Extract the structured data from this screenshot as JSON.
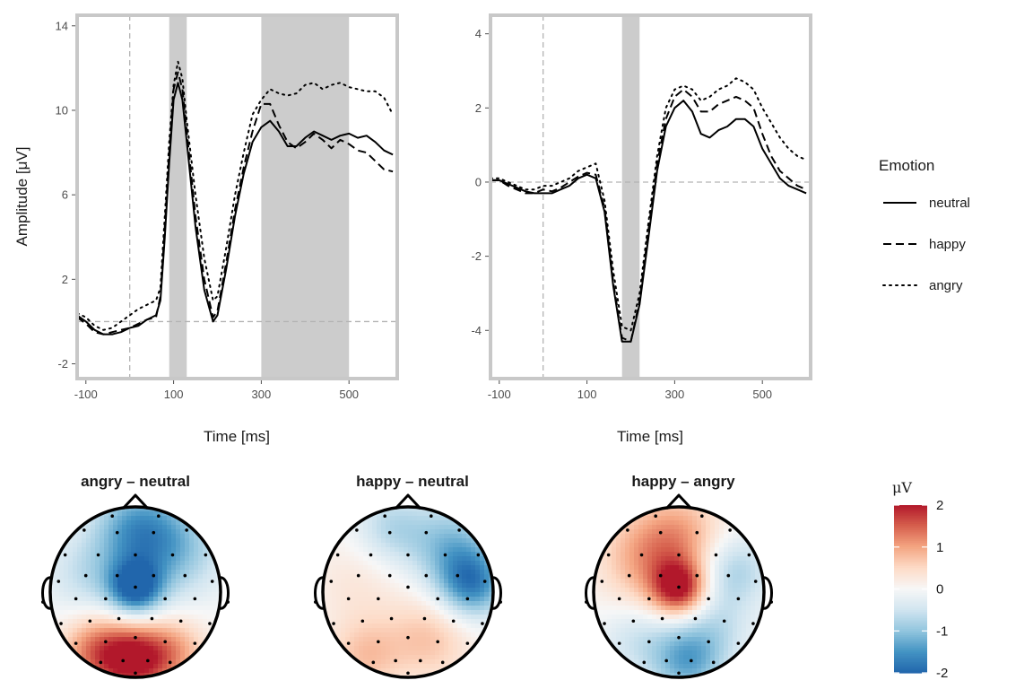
{
  "chart_data": [
    {
      "type": "line",
      "xlabel": "Time [ms]",
      "ylabel": "Amplitude [μV]",
      "xlim": [
        -120,
        610
      ],
      "ylim": [
        -2.7,
        14.5
      ],
      "xticks": [
        -100,
        100,
        300,
        500
      ],
      "yticks": [
        -2,
        2,
        6,
        10,
        14
      ],
      "grid": false,
      "shaded_windows": [
        [
          90,
          130
        ],
        [
          300,
          500
        ]
      ],
      "reference_lines": {
        "x": 0,
        "y": 0
      },
      "series": [
        {
          "name": "neutral",
          "dash": "solid",
          "x": [
            -120,
            -100,
            -80,
            -60,
            -40,
            -20,
            0,
            20,
            40,
            60,
            70,
            80,
            90,
            100,
            110,
            120,
            130,
            150,
            170,
            190,
            200,
            220,
            240,
            260,
            280,
            300,
            320,
            340,
            360,
            380,
            400,
            420,
            440,
            460,
            480,
            500,
            520,
            540,
            560,
            580,
            600
          ],
          "y": [
            0.3,
            0,
            -0.4,
            -0.6,
            -0.6,
            -0.5,
            -0.3,
            -0.2,
            0.1,
            0.3,
            1,
            4,
            7.5,
            10.5,
            11.3,
            10.5,
            8.5,
            4.5,
            1.5,
            0,
            0.3,
            2.5,
            5,
            7,
            8.5,
            9.2,
            9.5,
            9,
            8.3,
            8.3,
            8.7,
            9,
            8.8,
            8.6,
            8.8,
            8.9,
            8.7,
            8.8,
            8.5,
            8.1,
            7.9
          ]
        },
        {
          "name": "happy",
          "dash": "dashed",
          "x": [
            -120,
            -100,
            -80,
            -60,
            -40,
            -20,
            0,
            20,
            40,
            60,
            70,
            80,
            90,
            100,
            110,
            120,
            130,
            150,
            170,
            190,
            200,
            220,
            240,
            260,
            280,
            300,
            320,
            340,
            360,
            380,
            400,
            420,
            440,
            460,
            480,
            500,
            520,
            540,
            560,
            580,
            600
          ],
          "y": [
            0.2,
            -0.1,
            -0.5,
            -0.6,
            -0.5,
            -0.4,
            -0.3,
            -0.1,
            0.1,
            0.2,
            1.2,
            4.5,
            8,
            11,
            11.8,
            11,
            9,
            5,
            2,
            0.2,
            0.5,
            2.8,
            5.3,
            7.3,
            9,
            10.3,
            10.3,
            9.3,
            8.5,
            8.2,
            8.5,
            8.9,
            8.6,
            8.2,
            8.6,
            8.4,
            8.1,
            8,
            7.6,
            7.2,
            7.1
          ]
        },
        {
          "name": "angry",
          "dash": "dotted",
          "x": [
            -120,
            -100,
            -80,
            -60,
            -40,
            -20,
            0,
            20,
            40,
            60,
            70,
            80,
            90,
            100,
            110,
            120,
            130,
            150,
            170,
            190,
            200,
            220,
            240,
            260,
            280,
            300,
            320,
            340,
            360,
            380,
            400,
            420,
            440,
            460,
            480,
            500,
            520,
            540,
            560,
            580,
            600
          ],
          "y": [
            0.4,
            0.2,
            -0.2,
            -0.4,
            -0.3,
            0,
            0.3,
            0.6,
            0.8,
            1,
            1.6,
            5,
            8.5,
            11.2,
            12.3,
            11.5,
            9.5,
            6,
            3,
            1,
            1.2,
            3.5,
            6,
            8,
            9.8,
            10.5,
            11,
            10.8,
            10.7,
            10.8,
            11.2,
            11.3,
            11,
            11.2,
            11.3,
            11.1,
            11,
            10.9,
            10.9,
            10.6,
            9.8
          ]
        }
      ]
    },
    {
      "type": "line",
      "xlabel": "Time [ms]",
      "ylabel": "",
      "xlim": [
        -120,
        610
      ],
      "ylim": [
        -5.3,
        4.5
      ],
      "xticks": [
        -100,
        100,
        300,
        500
      ],
      "yticks": [
        -4,
        -2,
        0,
        2,
        4
      ],
      "grid": false,
      "shaded_windows": [
        [
          180,
          220
        ]
      ],
      "reference_lines": {
        "x": 0,
        "y": 0
      },
      "series": [
        {
          "name": "neutral",
          "dash": "solid",
          "x": [
            -120,
            -100,
            -80,
            -60,
            -40,
            -20,
            0,
            20,
            40,
            60,
            80,
            100,
            120,
            140,
            160,
            180,
            200,
            220,
            240,
            260,
            280,
            300,
            320,
            340,
            360,
            380,
            400,
            420,
            440,
            460,
            480,
            500,
            520,
            540,
            560,
            580,
            600
          ],
          "y": [
            0.05,
            0.05,
            -0.05,
            -0.15,
            -0.25,
            -0.3,
            -0.3,
            -0.3,
            -0.2,
            -0.1,
            0.1,
            0.2,
            0.1,
            -0.8,
            -2.8,
            -4.3,
            -4.3,
            -3.3,
            -1.5,
            0.3,
            1.5,
            2,
            2.2,
            1.9,
            1.3,
            1.2,
            1.4,
            1.5,
            1.7,
            1.7,
            1.5,
            0.9,
            0.5,
            0.1,
            -0.1,
            -0.2,
            -0.3
          ]
        },
        {
          "name": "happy",
          "dash": "dashed",
          "x": [
            -120,
            -100,
            -80,
            -60,
            -40,
            -20,
            0,
            20,
            40,
            60,
            80,
            100,
            120,
            140,
            160,
            180,
            200,
            220,
            240,
            260,
            280,
            300,
            320,
            340,
            360,
            380,
            400,
            420,
            440,
            460,
            480,
            500,
            520,
            540,
            560,
            580,
            600
          ],
          "y": [
            0.05,
            0.05,
            -0.1,
            -0.2,
            -0.3,
            -0.3,
            -0.2,
            -0.25,
            -0.15,
            0,
            0.15,
            0.25,
            0.2,
            -0.7,
            -2.7,
            -4.2,
            -4.3,
            -3.2,
            -1.3,
            0.5,
            1.7,
            2.3,
            2.5,
            2.3,
            1.9,
            1.9,
            2.1,
            2.2,
            2.3,
            2.2,
            2,
            1.3,
            0.7,
            0.3,
            0.1,
            -0.1,
            -0.2
          ]
        },
        {
          "name": "angry",
          "dash": "dotted",
          "x": [
            -120,
            -100,
            -80,
            -60,
            -40,
            -20,
            0,
            20,
            40,
            60,
            80,
            100,
            120,
            140,
            160,
            180,
            200,
            220,
            240,
            260,
            280,
            300,
            320,
            340,
            360,
            380,
            400,
            420,
            440,
            460,
            480,
            500,
            520,
            540,
            560,
            580,
            600
          ],
          "y": [
            0.1,
            0.1,
            0,
            -0.1,
            -0.2,
            -0.2,
            -0.1,
            -0.1,
            0,
            0.1,
            0.3,
            0.4,
            0.5,
            -0.5,
            -2.4,
            -3.9,
            -4,
            -3,
            -1.1,
            0.7,
            2,
            2.5,
            2.6,
            2.5,
            2.2,
            2.3,
            2.5,
            2.6,
            2.8,
            2.7,
            2.5,
            2,
            1.6,
            1.2,
            0.9,
            0.7,
            0.6
          ]
        }
      ]
    },
    {
      "type": "heatmap",
      "title": "angry – neutral",
      "blobs": [
        {
          "x": 0.0,
          "y": 0.05,
          "v": -2.0,
          "s": 0.22
        },
        {
          "x": 0.0,
          "y": 0.75,
          "v": -1.2,
          "s": 0.35
        },
        {
          "x": 0.45,
          "y": 0.5,
          "v": -1.0,
          "s": 0.4
        },
        {
          "x": 0.0,
          "y": -0.8,
          "v": 1.8,
          "s": 0.28
        },
        {
          "x": -0.45,
          "y": -0.7,
          "v": 1.3,
          "s": 0.3
        },
        {
          "x": 0.45,
          "y": -0.7,
          "v": 0.9,
          "s": 0.28
        },
        {
          "x": -0.55,
          "y": 0.2,
          "v": -0.6,
          "s": 0.35
        }
      ]
    },
    {
      "type": "heatmap",
      "title": "happy – neutral",
      "blobs": [
        {
          "x": 0.75,
          "y": 0.1,
          "v": -1.6,
          "s": 0.28
        },
        {
          "x": 0.5,
          "y": 0.55,
          "v": -1.0,
          "s": 0.35
        },
        {
          "x": -0.2,
          "y": 0.75,
          "v": -0.7,
          "s": 0.3
        },
        {
          "x": 0.25,
          "y": -0.55,
          "v": 0.7,
          "s": 0.35
        },
        {
          "x": -0.5,
          "y": -0.75,
          "v": 0.7,
          "s": 0.3
        },
        {
          "x": -0.6,
          "y": 0.1,
          "v": 0.3,
          "s": 0.4
        }
      ]
    },
    {
      "type": "heatmap",
      "title": "happy – angry",
      "blobs": [
        {
          "x": 0.0,
          "y": 0.05,
          "v": 1.9,
          "s": 0.22
        },
        {
          "x": -0.35,
          "y": 0.4,
          "v": 1.0,
          "s": 0.4
        },
        {
          "x": 0.05,
          "y": 0.7,
          "v": 0.7,
          "s": 0.35
        },
        {
          "x": 0.1,
          "y": -0.8,
          "v": -1.3,
          "s": 0.3
        },
        {
          "x": -0.5,
          "y": -0.55,
          "v": -0.5,
          "s": 0.3
        },
        {
          "x": 0.65,
          "y": 0.25,
          "v": -0.8,
          "s": 0.3
        },
        {
          "x": 0.45,
          "y": -0.4,
          "v": -0.5,
          "s": 0.3
        }
      ]
    }
  ],
  "legend": {
    "title": "Emotion",
    "items": [
      {
        "label": "neutral",
        "dash": "solid"
      },
      {
        "label": "happy",
        "dash": "dashed"
      },
      {
        "label": "angry",
        "dash": "dotted"
      }
    ]
  },
  "colorbar": {
    "title": "μV",
    "range": [
      -2,
      2
    ],
    "ticks": [
      "2",
      "1",
      "0",
      "-1",
      "-2"
    ],
    "colors": [
      "#2166ac",
      "#4393c3",
      "#92c5de",
      "#d1e5f0",
      "#f7f7f7",
      "#fddbc7",
      "#f4a582",
      "#d6604d",
      "#b2182b"
    ]
  },
  "colors": {
    "panel_border": "#c8c8c8",
    "shade": "#cccccc",
    "ref_line": "#b3b3b3",
    "line": "#000000"
  }
}
